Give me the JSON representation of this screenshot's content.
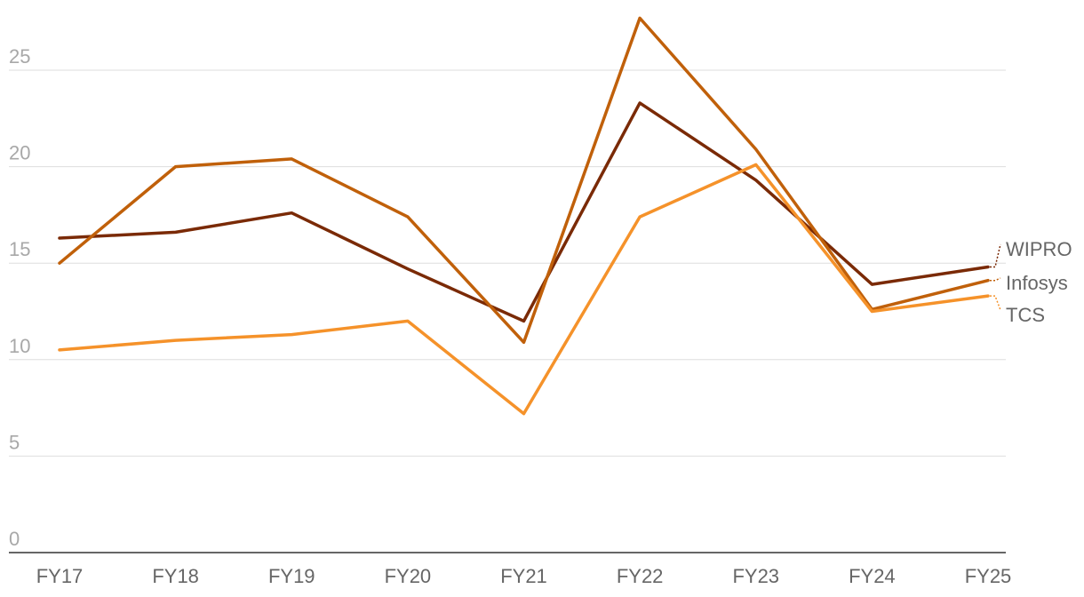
{
  "chart_data": {
    "type": "line",
    "title": "",
    "xlabel": "",
    "ylabel": "",
    "categories": [
      "FY17",
      "FY18",
      "FY19",
      "FY20",
      "FY21",
      "FY22",
      "FY23",
      "FY24",
      "FY25"
    ],
    "ylim": [
      0,
      27.5
    ],
    "y_ticks": [
      0,
      5,
      10,
      15,
      20,
      25
    ],
    "grid": true,
    "legend": "direct labels at right end of lines",
    "series": [
      {
        "name": "WIPRO",
        "color": "#7a2a06",
        "values": [
          16.3,
          16.6,
          17.6,
          14.7,
          12.0,
          23.3,
          19.3,
          13.9,
          14.8
        ]
      },
      {
        "name": "Infosys",
        "color": "#c0600a",
        "values": [
          15.0,
          20.0,
          20.4,
          17.4,
          10.9,
          27.7,
          20.9,
          12.6,
          14.1
        ]
      },
      {
        "name": "TCS",
        "color": "#f5922a",
        "values": [
          10.5,
          11.0,
          11.3,
          12.0,
          7.2,
          17.4,
          20.1,
          12.5,
          13.3
        ]
      }
    ]
  }
}
